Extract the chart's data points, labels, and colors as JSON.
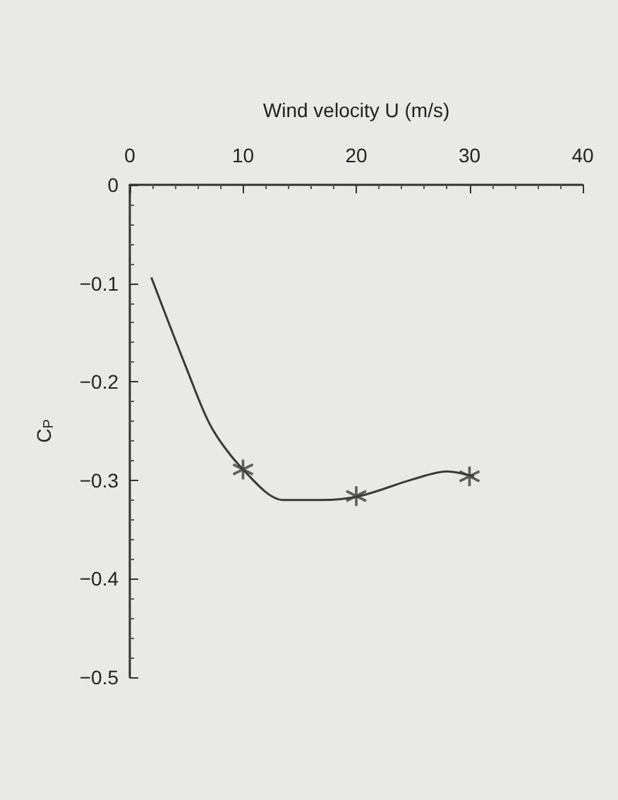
{
  "chart_data": {
    "type": "line",
    "xlabel": "Wind velocity U (m/s)",
    "ylabel": "C$_{P}$",
    "xlim": [
      0,
      40
    ],
    "xticks": [
      0,
      10,
      20,
      30,
      40
    ],
    "ylim": [
      -0.5,
      0
    ],
    "yticks": [
      0,
      -0.1,
      -0.2,
      -0.3,
      -0.4,
      -0.5
    ],
    "grid": false,
    "series": [
      {
        "marker": "none",
        "color": "#3a3a3a",
        "x": [
          1.9,
          5.1,
          7.2,
          10,
          13.5,
          16.8,
          20.3,
          25,
          28,
          30.4
        ],
        "values": [
          -0.094,
          -0.189,
          -0.246,
          -0.289,
          -0.32,
          -0.32,
          -0.316,
          -0.299,
          -0.291,
          -0.296
        ]
      },
      {
        "type": "scatter",
        "marker": "cross",
        "color": "#3a3a3a",
        "x": [
          10,
          20,
          30
        ],
        "values": [
          -0.289,
          -0.316,
          -0.296
        ]
      }
    ]
  }
}
